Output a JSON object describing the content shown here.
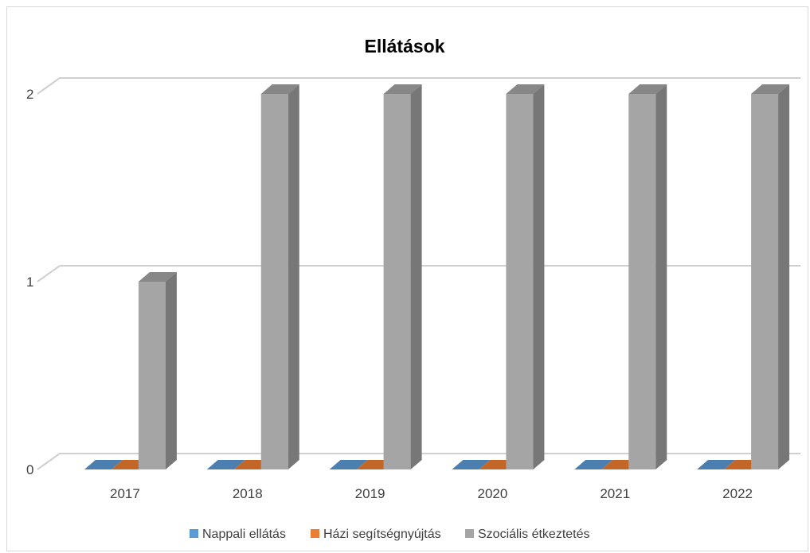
{
  "chart_data": {
    "type": "bar",
    "title": "Ellátások",
    "categories": [
      "2017",
      "2018",
      "2019",
      "2020",
      "2021",
      "2022"
    ],
    "series": [
      {
        "name": "Nappali ellátás",
        "color": "#5b9bd5",
        "values": [
          0,
          0,
          0,
          0,
          0,
          0
        ]
      },
      {
        "name": "Házi segítségnyújtás",
        "color": "#ed7d31",
        "values": [
          0,
          0,
          0,
          0,
          0,
          0
        ]
      },
      {
        "name": "Szociális étkeztetés",
        "color": "#a5a5a5",
        "values": [
          1,
          2,
          2,
          2,
          2,
          2
        ]
      }
    ],
    "yticks": [
      "0",
      "1",
      "2"
    ],
    "ylim": [
      0,
      2
    ],
    "grid": true,
    "legend_position": "bottom",
    "style": "3d-column"
  }
}
